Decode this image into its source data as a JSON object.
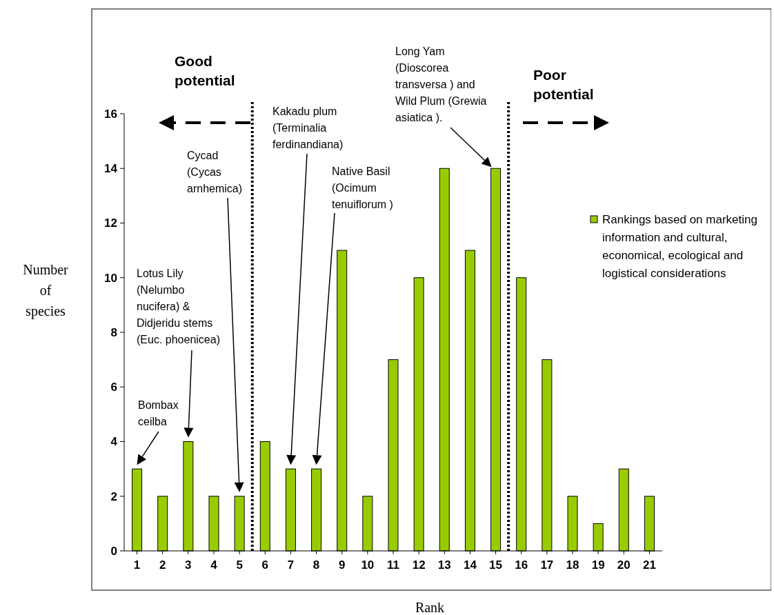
{
  "chart_data": {
    "type": "bar",
    "xlabel": "Rank",
    "ylabel": "Number of species",
    "x": [
      1,
      2,
      3,
      4,
      5,
      6,
      7,
      8,
      9,
      10,
      11,
      12,
      13,
      14,
      15,
      16,
      17,
      18,
      19,
      20,
      21
    ],
    "xlim": [
      0.5,
      21.5
    ],
    "xticks": [
      1,
      2,
      3,
      4,
      5,
      6,
      7,
      8,
      9,
      10,
      11,
      12,
      13,
      14,
      15,
      16,
      17,
      18,
      19,
      20,
      21
    ],
    "ylim": [
      0,
      16
    ],
    "yticks": [
      0,
      2,
      4,
      6,
      8,
      10,
      12,
      14,
      16
    ],
    "series": [
      {
        "name": "Rankings based on marketing information and cultural, economical, ecological and logistical considerations",
        "color": "#99cc00",
        "values": [
          3,
          2,
          4,
          2,
          2,
          4,
          3,
          3,
          11,
          2,
          7,
          10,
          14,
          11,
          14,
          10,
          7,
          2,
          1,
          3,
          2
        ]
      }
    ],
    "ref_lines": [
      {
        "axis": "x",
        "value": 5.5,
        "line_style": "dotted"
      },
      {
        "axis": "x",
        "value": 15.5,
        "line_style": "dotted"
      }
    ],
    "annotations": [
      "Good\npotential",
      "Poor\npotential",
      "Bombax\nceilba",
      "Lotus Lily\n(Nelumbo\nnucifera) &\nDidjeridu stems\n(Euc. phoenicea)",
      "Cycad\n(Cycas\narnhemica)",
      "Kakadu plum\n(Terminalia\nferdinandiana)",
      "Native Basil\n(Ocimum\ntenuiflorum )",
      "Long Yam\n(Dioscorea\ntransversa ) and\nWild Plum (Grewia\nasiatica )."
    ],
    "grid": false,
    "legend": "right"
  }
}
